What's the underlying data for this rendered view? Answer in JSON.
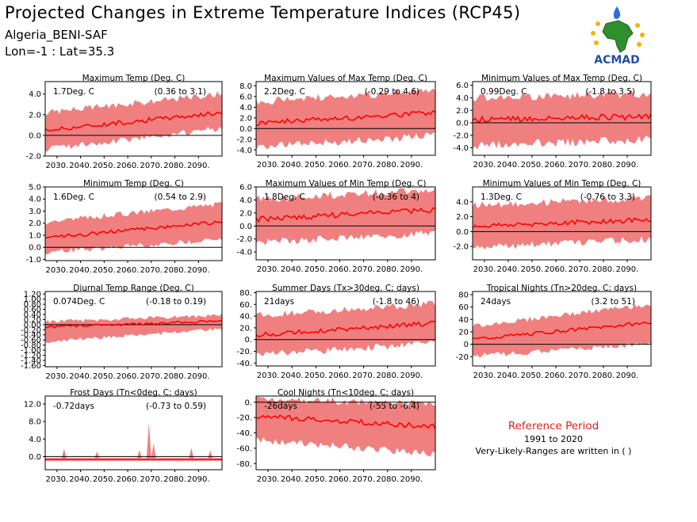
{
  "header": {
    "title": "Projected Changes in Extreme Temperature Indices (RCP45)",
    "location": "Algeria_BENI-SAF",
    "coords": "Lon=-1 : Lat=35.3"
  },
  "logo": {
    "text": "ACMAD",
    "icon": "acmad-africa-logo"
  },
  "reference": {
    "title": "Reference Period",
    "years": "1991 to 2020",
    "note": "Very-Likely-Ranges are written in ( )"
  },
  "colors": {
    "band": "#f08080",
    "median": "#ff0000",
    "zero_line": "#000000",
    "reference_title": "#e0201a"
  },
  "chart_data": [
    {
      "type": "line",
      "title": "Maximum Temp (Deg. C)",
      "change": "1.7Deg. C",
      "range": "(0.36 to 3.1)",
      "ylim": [
        -2.0,
        5.2
      ],
      "yticks": [
        "-2.0",
        "0.0",
        "2.0",
        "4.0"
      ],
      "xticks": [
        "2030.",
        "2040.",
        "2050.",
        "2060.",
        "2070.",
        "2080.",
        "2090."
      ],
      "series": [
        {
          "values_start": 0.5,
          "values_end": 2.2
        },
        {
          "lower_start": -1.0,
          "lower_end": 1.0
        },
        {
          "upper_start": 1.9,
          "upper_end": 3.7
        }
      ]
    },
    {
      "type": "line",
      "title": "Maximum Values of Max Temp (Deg. C)",
      "change": "2.2Deg. C",
      "range": "(-0.29 to 4.6)",
      "ylim": [
        -5.0,
        8.8
      ],
      "yticks": [
        "-4.0",
        "-2.0",
        "0.0",
        "2.0",
        "4.0",
        "6.0",
        "8.0"
      ],
      "xticks": [
        "2030.",
        "2040.",
        "2050.",
        "2060.",
        "2070.",
        "2080.",
        "2090."
      ],
      "series": [
        {
          "values_start": 1.0,
          "values_end": 3.0
        },
        {
          "lower_start": -2.8,
          "lower_end": -0.5
        },
        {
          "upper_start": 4.3,
          "upper_end": 6.3
        }
      ]
    },
    {
      "type": "line",
      "title": "Minimum Values of Max Temp (Deg. C)",
      "change": "0.99Deg. C",
      "range": "(-1.8 to 3.5)",
      "ylim": [
        -5.2,
        6.6
      ],
      "yticks": [
        "-4.0",
        "-2.0",
        "0.0",
        "2.0",
        "4.0",
        "6.0"
      ],
      "xticks": [
        "2030.",
        "2040.",
        "2050.",
        "2060.",
        "2070.",
        "2080.",
        "2090."
      ],
      "series": [
        {
          "values_start": 0.5,
          "values_end": 1.0
        },
        {
          "lower_start": -3.0,
          "lower_end": -2.0
        },
        {
          "upper_start": 3.3,
          "upper_end": 4.0
        }
      ]
    },
    {
      "type": "line",
      "title": "Minimum Temp (Deg. C)",
      "change": "1.6Deg. C",
      "range": "(0.54 to 2.9)",
      "ylim": [
        -1.1,
        5.0
      ],
      "yticks": [
        "-1.0",
        "0.0",
        "1.0",
        "2.0",
        "3.0",
        "4.0",
        "5.0"
      ],
      "xticks": [
        "2030.",
        "2040.",
        "2050.",
        "2060.",
        "2070.",
        "2080.",
        "2090."
      ],
      "series": [
        {
          "values_start": 0.8,
          "values_end": 2.1
        },
        {
          "lower_start": -0.2,
          "lower_end": 0.9
        },
        {
          "upper_start": 1.9,
          "upper_end": 3.4
        }
      ]
    },
    {
      "type": "line",
      "title": "Maximum Values of Min Temp (Deg. C)",
      "change": "1.8Deg. C",
      "range": "(-0.36 to 4)",
      "ylim": [
        -5.2,
        6.0
      ],
      "yticks": [
        "-4.0",
        "-2.0",
        "0.0",
        "2.0",
        "4.0",
        "6.0"
      ],
      "xticks": [
        "2030.",
        "2040.",
        "2050.",
        "2060.",
        "2070.",
        "2080.",
        "2090."
      ],
      "series": [
        {
          "values_start": 1.0,
          "values_end": 2.5
        },
        {
          "lower_start": -2.0,
          "lower_end": -0.5
        },
        {
          "upper_start": 3.5,
          "upper_end": 5.0
        }
      ]
    },
    {
      "type": "line",
      "title": "Minimum Values of Min Temp (Deg. C)",
      "change": "1.3Deg. C",
      "range": "(-0.76 to 3.3)",
      "ylim": [
        -3.8,
        6.0
      ],
      "yticks": [
        "-2.0",
        "0.0",
        "2.0",
        "4.0"
      ],
      "xticks": [
        "2030.",
        "2040.",
        "2050.",
        "2060.",
        "2070.",
        "2080.",
        "2090."
      ],
      "series": [
        {
          "values_start": 0.7,
          "values_end": 1.6
        },
        {
          "lower_start": -1.7,
          "lower_end": -0.5
        },
        {
          "upper_start": 3.0,
          "upper_end": 4.0
        }
      ]
    },
    {
      "type": "line",
      "title": "Diurnal Temp Range (Deg. C)",
      "change": "0.074Deg. C",
      "range": "(-0.18 to 0.19)",
      "ylim": [
        -1.65,
        1.3
      ],
      "yticks": [
        "-1.60",
        "-1.40",
        "-1.20",
        "-1.00",
        "-0.80",
        "-0.60",
        "-0.40",
        "-0.20",
        "0.00",
        "0.20",
        "0.40",
        "0.60",
        "0.80",
        "1.00",
        "1.20"
      ],
      "xticks": [
        "2030.",
        "2040.",
        "2050.",
        "2060.",
        "2070.",
        "2080.",
        "2090."
      ],
      "series": [
        {
          "values_start": -0.1,
          "values_end": 0.15
        },
        {
          "lower_start": -0.6,
          "lower_end": -0.1
        },
        {
          "upper_start": 0.05,
          "upper_end": 0.3
        }
      ]
    },
    {
      "type": "line",
      "title": "Summer Days (Tx>30deg. C; days)",
      "change": "21days",
      "range": "(-1.8 to 46)",
      "ylim": [
        -45,
        82
      ],
      "yticks": [
        "-40.",
        "-20.",
        "0.",
        "20.",
        "40.",
        "60.",
        "80."
      ],
      "xticks": [
        "2030.",
        "2040.",
        "2050.",
        "2060.",
        "2070.",
        "2080.",
        "2090."
      ],
      "series": [
        {
          "values_start": 8,
          "values_end": 28
        },
        {
          "lower_start": -20,
          "lower_end": 0
        },
        {
          "upper_start": 35,
          "upper_end": 55
        }
      ]
    },
    {
      "type": "line",
      "title": "Tropical Nights (Tn>20deg. C; days)",
      "change": "24days",
      "range": "(3.2 to 51)",
      "ylim": [
        -35,
        85
      ],
      "yticks": [
        "-20",
        "0",
        "20",
        "40",
        "60",
        "80"
      ],
      "xticks": [
        "2030.",
        "2040.",
        "2050.",
        "2060.",
        "2070.",
        "2080.",
        "2090."
      ],
      "series": [
        {
          "values_start": 8,
          "values_end": 35
        },
        {
          "lower_start": -15,
          "lower_end": 5
        },
        {
          "upper_start": 25,
          "upper_end": 60
        }
      ]
    },
    {
      "type": "line",
      "title": "Frost Days (Tn<0deg. C; days)",
      "change": "-0.72days",
      "range": "(-0.73 to 0.59)",
      "ylim": [
        -3.0,
        13.8
      ],
      "yticks": [
        "0.0",
        "4.0",
        "8.0",
        "12.0"
      ],
      "xticks": [
        "2030.",
        "2040.",
        "2050.",
        "2060.",
        "2070.",
        "2080.",
        "2090."
      ],
      "series": [
        {
          "values_start": -0.72,
          "values_end": -0.72
        },
        {
          "lower_start": -0.9,
          "lower_end": -0.9
        },
        {
          "upper_start": 1.0,
          "upper_end": 1.0
        }
      ]
    },
    {
      "type": "line",
      "title": "Cool Nights (Tn<10deg. C; days)",
      "change": "-26days",
      "range": "(-55 to -6.4)",
      "ylim": [
        -88,
        8
      ],
      "yticks": [
        "-80.",
        "-60.",
        "-40.",
        "-20.",
        "0."
      ],
      "xticks": [
        "2030.",
        "2040.",
        "2050.",
        "2060.",
        "2070.",
        "2080.",
        "2090."
      ],
      "series": [
        {
          "values_start": -18,
          "values_end": -32
        },
        {
          "lower_start": -45,
          "lower_end": -62
        },
        {
          "upper_start": 0,
          "upper_end": -8
        }
      ]
    }
  ]
}
